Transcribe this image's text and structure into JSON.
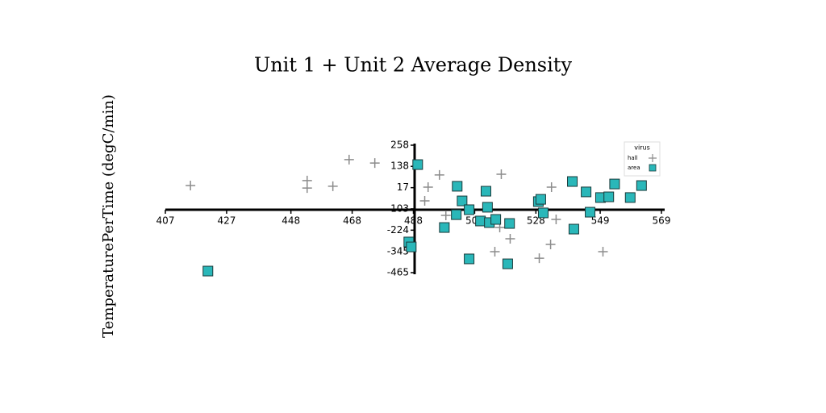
{
  "chart_data": {
    "type": "scatter",
    "title": "Unit 1 + Unit 2 Average Density",
    "y_label": "TemperaturePerTime (degC/min)",
    "legend_title": "virus",
    "legend": "upper right",
    "xlim": [
      407,
      569
    ],
    "xticks": [
      407,
      427,
      448,
      468,
      488,
      508,
      528,
      549,
      569
    ],
    "ylim": [
      -465,
      258
    ],
    "yticks": [
      258,
      138,
      17,
      -103,
      -224,
      -345,
      -465
    ],
    "series": [
      {
        "name": "hall",
        "color": "#8c8c8c",
        "marker": "plus",
        "x": [
          415.2,
          453.3,
          453.3,
          461.7,
          467.0,
          475.4,
          496.5,
          492.8,
          491.7,
          516.7,
          498.6,
          533.1,
          534.6,
          519.6,
          514.6,
          532.8,
          549.9,
          529.1,
          516.2
        ],
        "values": [
          29,
          57,
          15,
          25,
          176,
          157,
          89,
          20,
          -58,
          93,
          -140,
          20,
          -163,
          -273,
          -346,
          -305,
          -346,
          -383,
          -209
        ]
      },
      {
        "name": "area",
        "color": "#2ab7b9",
        "marker": "square",
        "x": [
          420.9,
          489.4,
          486.5,
          487.3,
          502.3,
          503.9,
          498.1,
          502.0,
          506.2,
          506.2,
          511.7,
          512.2,
          509.9,
          512.8,
          514.9,
          518.8,
          519.4,
          528.8,
          529.6,
          530.4,
          539.9,
          540.4,
          544.4,
          545.7,
          549.1,
          551.8,
          553.7,
          558.8,
          562.5
        ],
        "values": [
          -456,
          148,
          -291,
          -319,
          25,
          -58,
          -209,
          -136,
          -108,
          -387,
          -3,
          -94,
          -172,
          -181,
          -163,
          -415,
          -186,
          -62,
          -49,
          -126,
          52,
          -218,
          -7,
          -122,
          -39,
          -35,
          38,
          -39,
          29
        ]
      }
    ]
  }
}
